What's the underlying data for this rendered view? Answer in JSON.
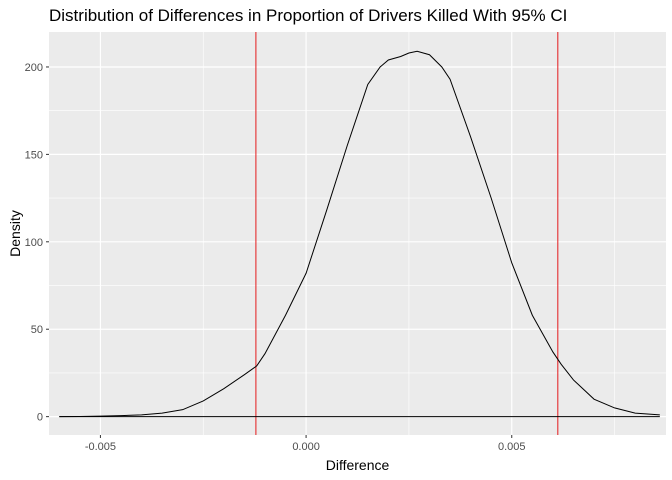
{
  "chart_data": {
    "type": "line",
    "title": "Distribution of Differences in Proportion of Drivers Killed With 95% CI",
    "xlabel": "Difference",
    "ylabel": "Density",
    "xlim": [
      -0.00625,
      0.00875
    ],
    "ylim": [
      -10.5,
      220
    ],
    "x_ticks": [
      -0.005,
      0.0,
      0.005
    ],
    "x_tick_labels": [
      "-0.005",
      "0.000",
      "0.005"
    ],
    "y_ticks": [
      0,
      50,
      100,
      150,
      200
    ],
    "y_tick_labels": [
      "0",
      "50",
      "100",
      "150",
      "200"
    ],
    "grid": true,
    "panel_background": "#ebebeb",
    "grid_color": "#ffffff",
    "series": [
      {
        "color": "#000000",
        "x": [
          -0.006,
          -0.0055,
          -0.005,
          -0.0045,
          -0.004,
          -0.0035,
          -0.003,
          -0.0025,
          -0.002,
          -0.0015,
          -0.0012,
          -0.001,
          -0.0005,
          0.0,
          0.0005,
          0.001,
          0.0015,
          0.0018,
          0.002,
          0.0023,
          0.0025,
          0.0027,
          0.003,
          0.0033,
          0.0035,
          0.004,
          0.0045,
          0.005,
          0.0055,
          0.006,
          0.0062,
          0.0065,
          0.007,
          0.0075,
          0.008,
          0.0086
        ],
        "y": [
          0,
          0.1,
          0.3,
          0.6,
          1.0,
          2,
          4,
          9,
          16,
          24,
          29,
          36,
          58,
          82,
          118,
          155,
          190,
          200,
          204,
          206,
          208,
          209,
          207,
          200,
          193,
          160,
          125,
          88,
          58,
          37,
          30,
          21,
          10,
          5,
          2,
          1
        ]
      }
    ],
    "ci_lines": {
      "x": [
        -0.00122,
        0.00612
      ],
      "color": "#e41a1c"
    },
    "baseline": 0
  }
}
